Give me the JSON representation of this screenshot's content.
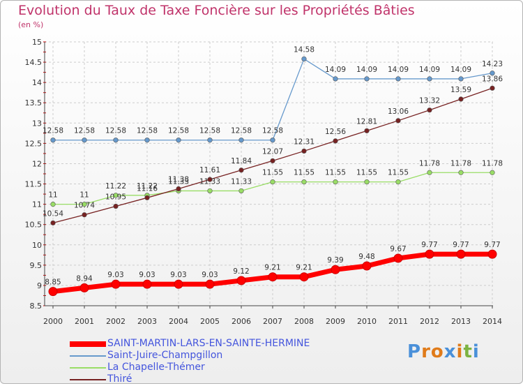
{
  "chart_data": {
    "type": "line",
    "title": "Evolution du Taux de Taxe Foncière sur les Propriétés Bâties",
    "subtitle": "(en %)",
    "xlabel": "",
    "ylabel": "",
    "x": [
      "2000",
      "2001",
      "2002",
      "2003",
      "2004",
      "2005",
      "2006",
      "2007",
      "2008",
      "2009",
      "2010",
      "2011",
      "2012",
      "2013",
      "2014"
    ],
    "ylim": [
      8.5,
      15
    ],
    "yticks": [
      "8.5",
      "9",
      "9.5",
      "10",
      "10.5",
      "11",
      "11.5",
      "12",
      "12.5",
      "13",
      "13.5",
      "14",
      "14.5",
      "15"
    ],
    "grid": true,
    "legend_position": "bottom-left",
    "series": [
      {
        "name": "SAINT-MARTIN-LARS-EN-SAINTE-HERMINE",
        "color": "#ff0000",
        "values": [
          8.85,
          8.94,
          9.03,
          9.03,
          9.03,
          9.03,
          9.12,
          9.21,
          9.21,
          9.39,
          9.48,
          9.67,
          9.77,
          9.77,
          9.77
        ],
        "labels": [
          "8.85",
          "8.94",
          "9.03",
          "9.03",
          "9.03",
          "9.03",
          "9.12",
          "9.21",
          "9.21",
          "9.39",
          "9.48",
          "9.67",
          "9.77",
          "9.77",
          "9.77"
        ]
      },
      {
        "name": "Saint-Juire-Champgillon",
        "color": "#6699cc",
        "values": [
          12.58,
          12.58,
          12.58,
          12.58,
          12.58,
          12.58,
          12.58,
          12.58,
          14.58,
          14.09,
          14.09,
          14.09,
          14.09,
          14.09,
          14.23
        ],
        "labels": [
          "12.58",
          "12.58",
          "12.58",
          "12.58",
          "12.58",
          "12.58",
          "12.58",
          "12.58",
          "14.58",
          "14.09",
          "14.09",
          "14.09",
          "14.09",
          "14.09",
          "14.23"
        ]
      },
      {
        "name": "La Chapelle-Thémer",
        "color": "#99dd66",
        "values": [
          11,
          11,
          11.22,
          11.22,
          11.33,
          11.33,
          11.33,
          11.55,
          11.55,
          11.55,
          11.55,
          11.55,
          11.78,
          11.78,
          11.78
        ],
        "labels": [
          "11",
          "11",
          "11.22",
          "11.22",
          "11.33",
          "11.33",
          "11.33",
          "11.55",
          "11.55",
          "11.55",
          "11.55",
          "11.55",
          "11.78",
          "11.78",
          "11.78"
        ]
      },
      {
        "name": "Thiré",
        "color": "#772222",
        "values": [
          10.54,
          10.74,
          10.95,
          11.16,
          11.38,
          11.61,
          11.84,
          12.07,
          12.31,
          12.56,
          12.81,
          13.06,
          13.32,
          13.59,
          13.86
        ],
        "labels": [
          "10.54",
          "10.74",
          "10.95",
          "11.16",
          "11.38",
          "11.61",
          "11.84",
          "12.07",
          "12.31",
          "12.56",
          "12.81",
          "13.06",
          "13.32",
          "13.59",
          "13.86"
        ]
      }
    ]
  },
  "logo": {
    "letters": [
      "P",
      "r",
      "o",
      "x",
      "i",
      "t",
      "i"
    ],
    "colors": [
      "#4a90d9",
      "#e07b1a",
      "#e07b1a",
      "#4a90d9",
      "#e07b1a",
      "#7cb342",
      "#4a90d9"
    ]
  }
}
